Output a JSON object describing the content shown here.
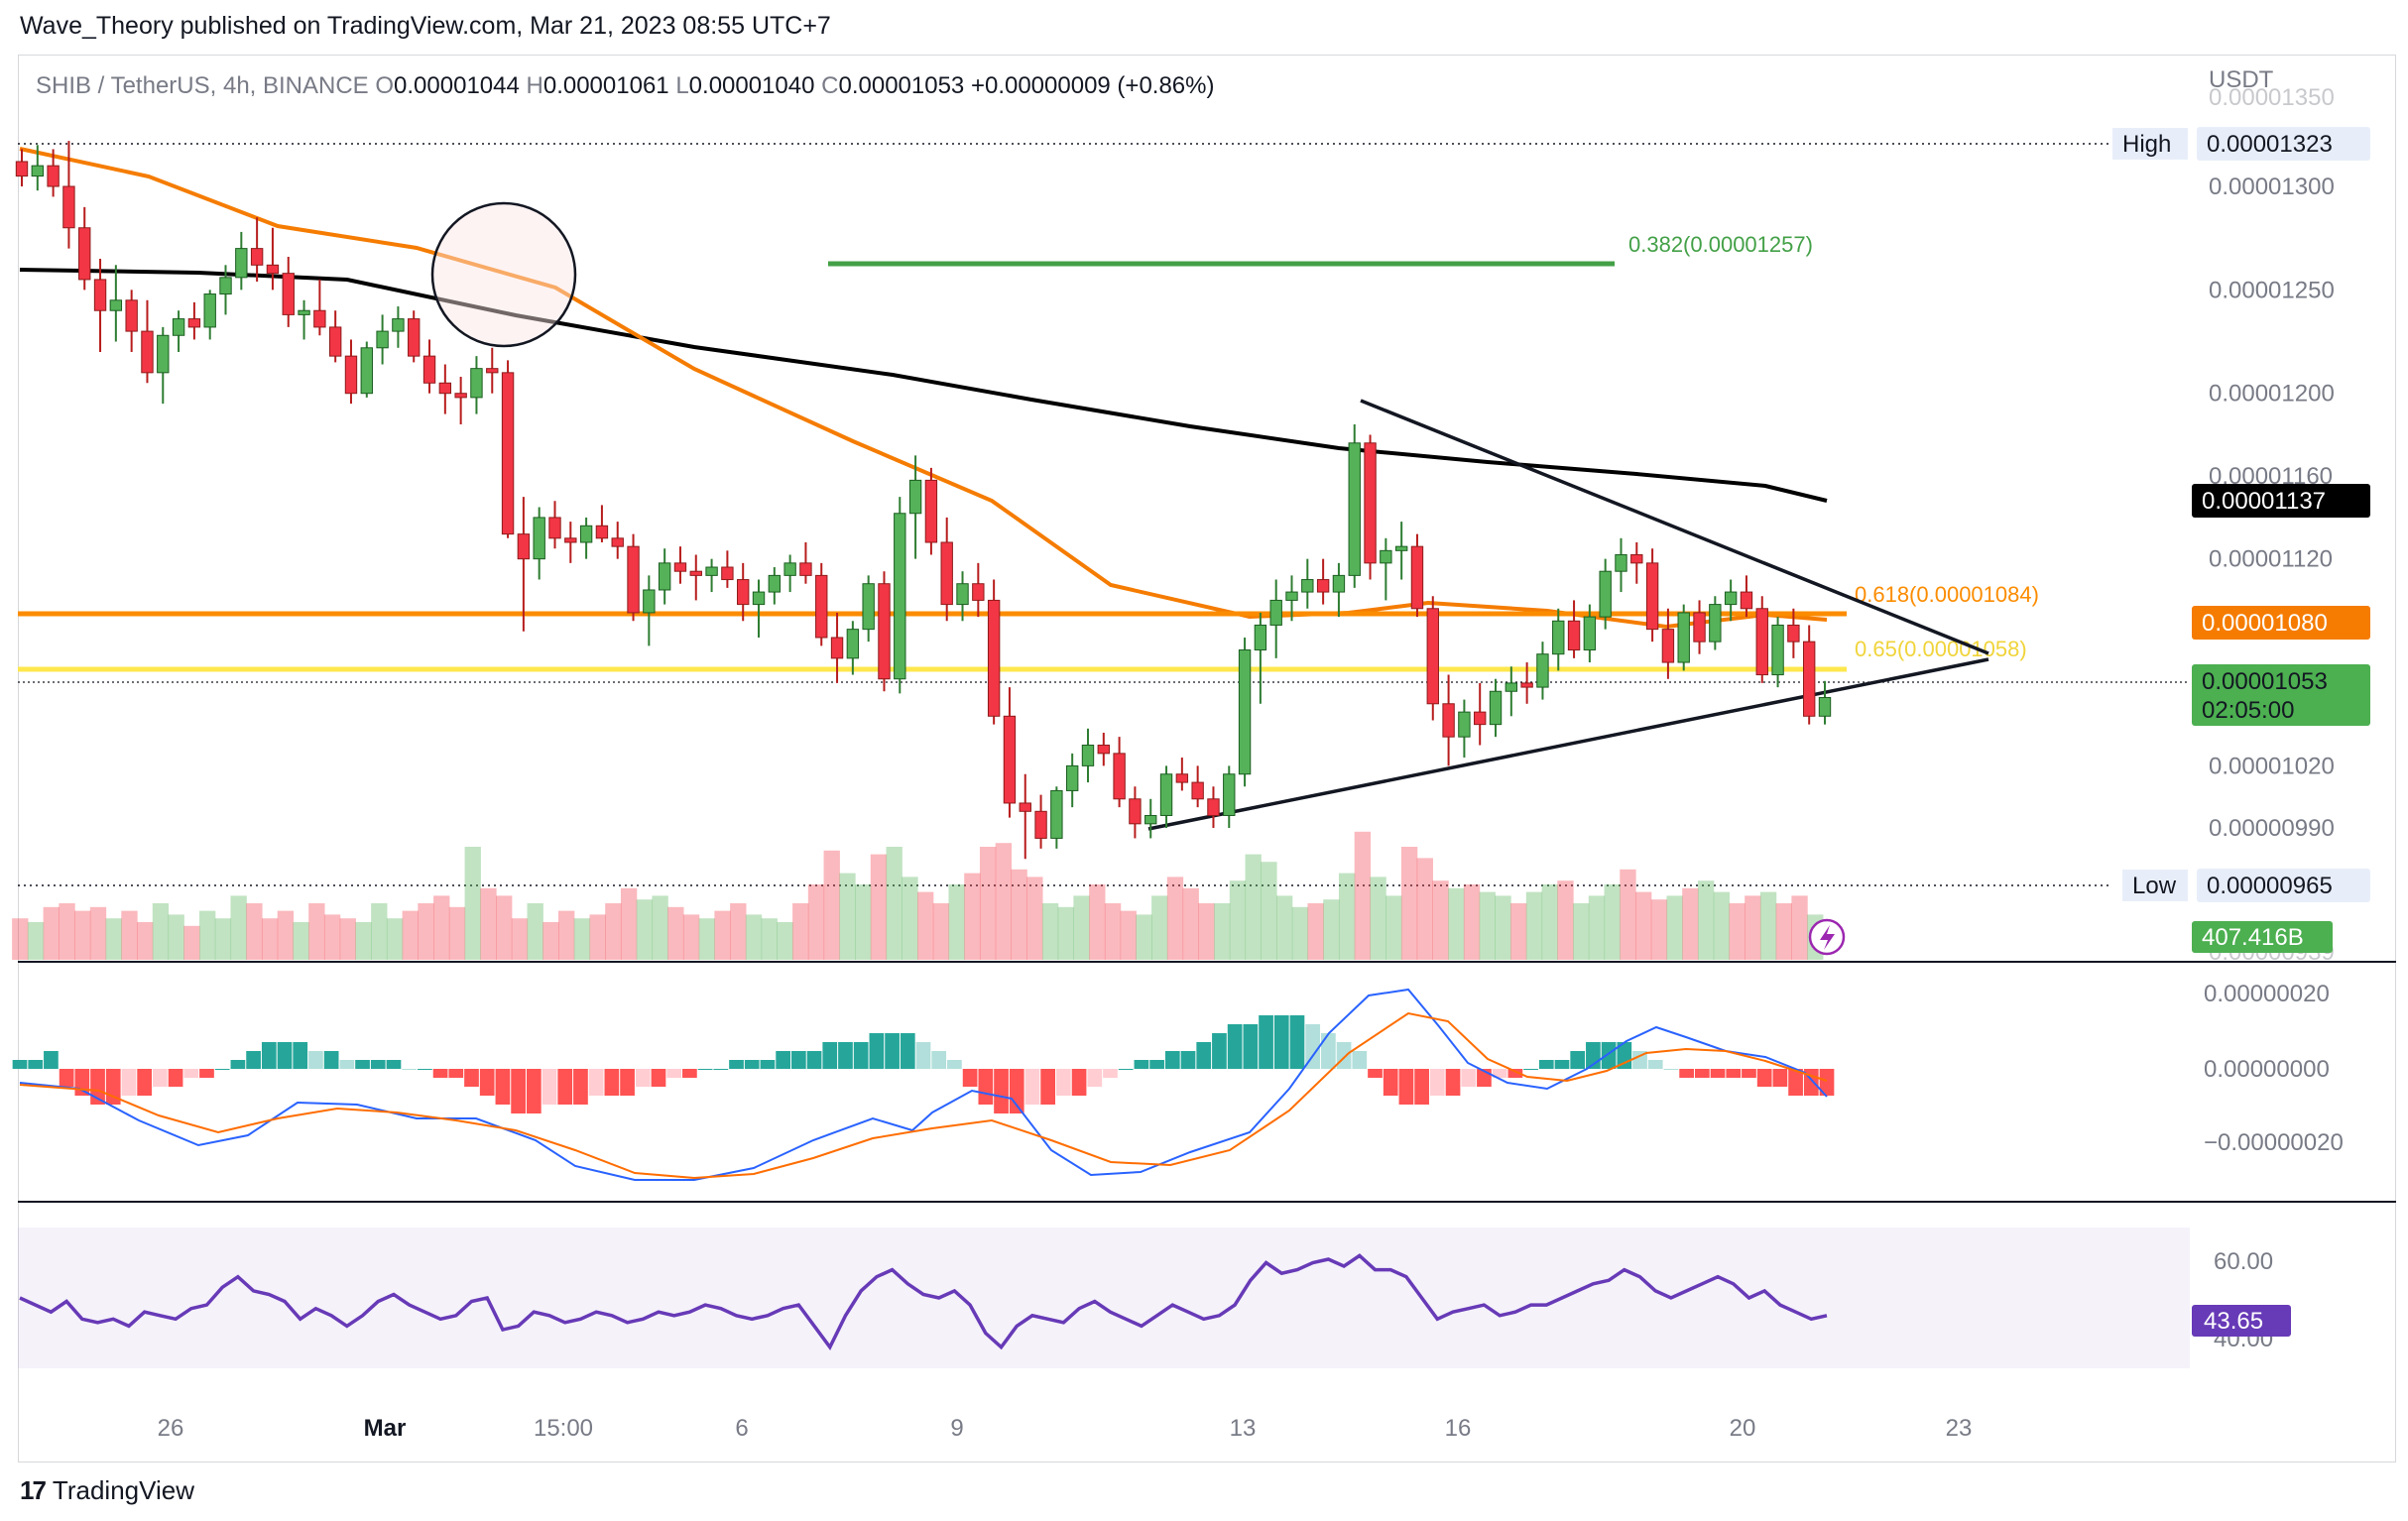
{
  "header": {
    "publisher_line": "Wave_Theory published on TradingView.com, Mar 21, 2023 08:55 UTC+7"
  },
  "legend": {
    "symbol": "SHIB / TetherUS, 4h, BINANCE",
    "o_label": "O",
    "o_value": "0.00001044",
    "h_label": "H",
    "h_value": "0.00001061",
    "l_label": "L",
    "l_value": "0.00001040",
    "c_label": "C",
    "c_value": "0.00001053",
    "change": "+0.00000009 (+0.86%)"
  },
  "footer": {
    "brand": "TradingView"
  },
  "chart_data": {
    "type": "candlestick",
    "currency": "USDT",
    "price_axis": {
      "ticks": [
        "0.00001300",
        "0.00001250",
        "0.00001200",
        "0.00001160",
        "0.00001120",
        "0.00001020",
        "0.00000990"
      ],
      "faded_ticks": [
        "0.00001350",
        "0.00000939"
      ],
      "tick_values": [
        1.3e-05,
        1.25e-05,
        1.2e-05,
        1.16e-05,
        1.12e-05,
        1.02e-05,
        9.9e-06
      ]
    },
    "time_axis": {
      "labels": [
        "26",
        "Mar",
        "15:00",
        "6",
        "9",
        "13",
        "16",
        "20",
        "23"
      ]
    },
    "price_labels": {
      "high": {
        "label": "High",
        "value": "0.00001323",
        "color": "#131722"
      },
      "low": {
        "label": "Low",
        "value": "0.00000965",
        "color": "#131722"
      },
      "ma200": {
        "value": "0.00001137",
        "color": "#000000"
      },
      "ma50": {
        "value": "0.00001080",
        "color": "#f57c00"
      },
      "last": {
        "value": "0.00001053",
        "countdown": "02:05:00",
        "color": "#4caf50"
      },
      "volume": {
        "value": "407.416B",
        "color": "#4caf50"
      },
      "rsi": {
        "value": "43.65",
        "color": "#673ab7"
      }
    },
    "fib_levels": [
      {
        "label": "0.382(0.00001257)",
        "value": 1.257e-05,
        "color": "#43a047"
      },
      {
        "label": "0.618(0.00001084)",
        "value": 1.084e-05,
        "color": "#fb8c00"
      },
      {
        "label": "0.65(0.00001058)",
        "value": 1.058e-05,
        "color": "#ffeb3b"
      }
    ],
    "macd_axis": {
      "ticks": [
        "0.00000020",
        "0.00000000",
        "−0.00000020"
      ]
    },
    "rsi_axis": {
      "ticks": [
        "60.00",
        "40.00"
      ]
    },
    "candles_ohlc_estimated": [
      [
        1.312,
        1.318,
        1.3,
        1.305
      ],
      [
        1.305,
        1.32,
        1.298,
        1.31
      ],
      [
        1.31,
        1.318,
        1.295,
        1.3
      ],
      [
        1.3,
        1.322,
        1.27,
        1.28
      ],
      [
        1.28,
        1.29,
        1.25,
        1.255
      ],
      [
        1.255,
        1.265,
        1.22,
        1.24
      ],
      [
        1.24,
        1.262,
        1.225,
        1.245
      ],
      [
        1.245,
        1.25,
        1.22,
        1.23
      ],
      [
        1.23,
        1.245,
        1.205,
        1.21
      ],
      [
        1.21,
        1.232,
        1.195,
        1.228
      ],
      [
        1.228,
        1.24,
        1.22,
        1.236
      ],
      [
        1.236,
        1.244,
        1.226,
        1.232
      ],
      [
        1.232,
        1.25,
        1.226,
        1.248
      ],
      [
        1.248,
        1.262,
        1.238,
        1.256
      ],
      [
        1.256,
        1.278,
        1.25,
        1.27
      ],
      [
        1.27,
        1.285,
        1.254,
        1.262
      ],
      [
        1.262,
        1.28,
        1.25,
        1.258
      ],
      [
        1.258,
        1.266,
        1.232,
        1.238
      ],
      [
        1.238,
        1.245,
        1.226,
        1.24
      ],
      [
        1.24,
        1.255,
        1.228,
        1.232
      ],
      [
        1.232,
        1.24,
        1.215,
        1.218
      ],
      [
        1.218,
        1.226,
        1.195,
        1.2
      ],
      [
        1.2,
        1.225,
        1.198,
        1.222
      ],
      [
        1.222,
        1.238,
        1.214,
        1.23
      ],
      [
        1.23,
        1.242,
        1.222,
        1.236
      ],
      [
        1.236,
        1.24,
        1.215,
        1.218
      ],
      [
        1.218,
        1.226,
        1.2,
        1.205
      ],
      [
        1.205,
        1.214,
        1.19,
        1.2
      ],
      [
        1.2,
        1.208,
        1.185,
        1.198
      ],
      [
        1.198,
        1.218,
        1.19,
        1.212
      ],
      [
        1.212,
        1.222,
        1.2,
        1.21
      ],
      [
        1.21,
        1.216,
        1.13,
        1.132
      ],
      [
        1.132,
        1.15,
        1.085,
        1.12
      ],
      [
        1.12,
        1.145,
        1.11,
        1.14
      ],
      [
        1.14,
        1.148,
        1.125,
        1.13
      ],
      [
        1.13,
        1.138,
        1.118,
        1.128
      ],
      [
        1.128,
        1.14,
        1.12,
        1.136
      ],
      [
        1.136,
        1.146,
        1.128,
        1.13
      ],
      [
        1.13,
        1.138,
        1.12,
        1.126
      ],
      [
        1.126,
        1.132,
        1.09,
        1.094
      ],
      [
        1.094,
        1.112,
        1.078,
        1.105
      ],
      [
        1.105,
        1.125,
        1.098,
        1.118
      ],
      [
        1.118,
        1.126,
        1.108,
        1.114
      ],
      [
        1.114,
        1.122,
        1.1,
        1.112
      ],
      [
        1.112,
        1.12,
        1.104,
        1.116
      ],
      [
        1.116,
        1.124,
        1.106,
        1.11
      ],
      [
        1.11,
        1.118,
        1.09,
        1.098
      ],
      [
        1.098,
        1.11,
        1.082,
        1.104
      ],
      [
        1.104,
        1.116,
        1.098,
        1.112
      ],
      [
        1.112,
        1.122,
        1.104,
        1.118
      ],
      [
        1.118,
        1.128,
        1.108,
        1.112
      ],
      [
        1.112,
        1.118,
        1.078,
        1.082
      ],
      [
        1.082,
        1.094,
        1.06,
        1.072
      ],
      [
        1.072,
        1.09,
        1.064,
        1.086
      ],
      [
        1.086,
        1.112,
        1.08,
        1.108
      ],
      [
        1.108,
        1.114,
        1.056,
        1.062
      ],
      [
        1.062,
        1.15,
        1.055,
        1.142
      ],
      [
        1.142,
        1.17,
        1.12,
        1.158
      ],
      [
        1.158,
        1.164,
        1.122,
        1.128
      ],
      [
        1.128,
        1.14,
        1.09,
        1.098
      ],
      [
        1.098,
        1.114,
        1.09,
        1.108
      ],
      [
        1.108,
        1.118,
        1.092,
        1.1
      ],
      [
        1.1,
        1.11,
        1.04,
        1.044
      ],
      [
        1.044,
        1.058,
        0.995,
        1.002
      ],
      [
        1.002,
        1.016,
        0.975,
        0.998
      ],
      [
        0.998,
        1.006,
        0.98,
        0.985
      ],
      [
        0.985,
        1.01,
        0.98,
        1.008
      ],
      [
        1.008,
        1.026,
        1.0,
        1.02
      ],
      [
        1.02,
        1.038,
        1.012,
        1.03
      ],
      [
        1.03,
        1.036,
        1.02,
        1.026
      ],
      [
        1.026,
        1.034,
        1.0,
        1.004
      ],
      [
        1.004,
        1.01,
        0.985,
        0.992
      ],
      [
        0.992,
        1.004,
        0.985,
        0.996
      ],
      [
        0.996,
        1.02,
        0.99,
        1.016
      ],
      [
        1.016,
        1.024,
        1.008,
        1.012
      ],
      [
        1.012,
        1.02,
        1.0,
        1.004
      ],
      [
        1.004,
        1.01,
        0.99,
        0.996
      ],
      [
        0.996,
        1.02,
        0.99,
        1.016
      ],
      [
        1.016,
        1.082,
        1.01,
        1.076
      ],
      [
        1.076,
        1.094,
        1.05,
        1.088
      ],
      [
        1.088,
        1.11,
        1.072,
        1.1
      ],
      [
        1.1,
        1.112,
        1.09,
        1.104
      ],
      [
        1.104,
        1.12,
        1.096,
        1.11
      ],
      [
        1.11,
        1.12,
        1.098,
        1.104
      ],
      [
        1.104,
        1.118,
        1.092,
        1.112
      ],
      [
        1.112,
        1.185,
        1.106,
        1.176
      ],
      [
        1.176,
        1.18,
        1.11,
        1.118
      ],
      [
        1.118,
        1.13,
        1.1,
        1.124
      ],
      [
        1.124,
        1.138,
        1.11,
        1.126
      ],
      [
        1.126,
        1.132,
        1.092,
        1.096
      ],
      [
        1.096,
        1.102,
        1.042,
        1.05
      ],
      [
        1.05,
        1.064,
        1.02,
        1.034
      ],
      [
        1.034,
        1.052,
        1.024,
        1.046
      ],
      [
        1.046,
        1.06,
        1.03,
        1.04
      ],
      [
        1.04,
        1.062,
        1.034,
        1.056
      ],
      [
        1.056,
        1.068,
        1.044,
        1.06
      ],
      [
        1.06,
        1.07,
        1.05,
        1.058
      ],
      [
        1.058,
        1.08,
        1.052,
        1.074
      ],
      [
        1.074,
        1.096,
        1.066,
        1.09
      ],
      [
        1.09,
        1.1,
        1.072,
        1.076
      ],
      [
        1.076,
        1.098,
        1.07,
        1.092
      ],
      [
        1.092,
        1.12,
        1.086,
        1.114
      ],
      [
        1.114,
        1.13,
        1.104,
        1.122
      ],
      [
        1.122,
        1.128,
        1.108,
        1.118
      ],
      [
        1.118,
        1.125,
        1.08,
        1.086
      ],
      [
        1.086,
        1.096,
        1.062,
        1.07
      ],
      [
        1.07,
        1.098,
        1.066,
        1.094
      ],
      [
        1.094,
        1.1,
        1.074,
        1.08
      ],
      [
        1.08,
        1.102,
        1.076,
        1.098
      ],
      [
        1.098,
        1.11,
        1.09,
        1.104
      ],
      [
        1.104,
        1.112,
        1.092,
        1.096
      ],
      [
        1.096,
        1.102,
        1.06,
        1.064
      ],
      [
        1.064,
        1.092,
        1.058,
        1.088
      ],
      [
        1.088,
        1.096,
        1.072,
        1.08
      ],
      [
        1.08,
        1.088,
        1.04,
        1.044
      ],
      [
        1.044,
        1.061,
        1.04,
        1.053
      ]
    ],
    "volume_bars_estimated": [
      22,
      20,
      28,
      30,
      26,
      28,
      22,
      26,
      20,
      30,
      24,
      18,
      26,
      22,
      34,
      30,
      22,
      26,
      20,
      30,
      24,
      22,
      20,
      30,
      22,
      26,
      30,
      34,
      28,
      60,
      38,
      34,
      22,
      30,
      20,
      26,
      22,
      24,
      30,
      38,
      32,
      34,
      28,
      24,
      22,
      26,
      30,
      24,
      22,
      20,
      30,
      40,
      58,
      46,
      40,
      56,
      60,
      44,
      36,
      30,
      40,
      46,
      60,
      62,
      48,
      44,
      30,
      28,
      34,
      40,
      30,
      26,
      24,
      34,
      44,
      38,
      30,
      30,
      42,
      56,
      52,
      34,
      28,
      30,
      32,
      46,
      68,
      44,
      34,
      60,
      54,
      42,
      38,
      40,
      36,
      34,
      30,
      36,
      40,
      42,
      30,
      34,
      40,
      48,
      36,
      32,
      34,
      38,
      42,
      36,
      30,
      34,
      36,
      30,
      34,
      24
    ],
    "macd_histogram_estimated": [
      1,
      1,
      2,
      -2,
      -3,
      -4,
      -4,
      -3,
      -3,
      -2,
      -2,
      -1,
      -1,
      0,
      1,
      2,
      3,
      3,
      3,
      2,
      2,
      1,
      1,
      1,
      1,
      0,
      0,
      -1,
      -1,
      -2,
      -3,
      -4,
      -5,
      -5,
      -4,
      -4,
      -4,
      -3,
      -3,
      -3,
      -2,
      -2,
      -1,
      -1,
      0,
      0,
      1,
      1,
      1,
      2,
      2,
      2,
      3,
      3,
      3,
      4,
      4,
      4,
      3,
      2,
      1,
      -2,
      -4,
      -5,
      -5,
      -4,
      -4,
      -3,
      -3,
      -2,
      -1,
      0,
      1,
      1,
      2,
      2,
      3,
      4,
      5,
      5,
      6,
      6,
      6,
      5,
      4,
      3,
      2,
      -1,
      -3,
      -4,
      -4,
      -3,
      -3,
      -2,
      -2,
      -1,
      -1,
      0,
      1,
      1,
      2,
      3,
      3,
      3,
      2,
      1,
      0,
      -1,
      -1,
      -1,
      -1,
      -1,
      -2,
      -2,
      -3,
      -3,
      -3
    ],
    "rsi_estimated": [
      50,
      48,
      46,
      49,
      44,
      43,
      44,
      42,
      46,
      45,
      44,
      47,
      48,
      53,
      56,
      52,
      51,
      49,
      44,
      47,
      45,
      42,
      45,
      49,
      51,
      48,
      46,
      44,
      45,
      49,
      50,
      41,
      42,
      46,
      45,
      43,
      44,
      46,
      45,
      43,
      44,
      46,
      45,
      46,
      48,
      47,
      45,
      44,
      45,
      47,
      48,
      42,
      36,
      45,
      52,
      56,
      58,
      54,
      51,
      50,
      52,
      48,
      40,
      36,
      42,
      45,
      44,
      43,
      47,
      49,
      46,
      44,
      42,
      45,
      48,
      46,
      44,
      45,
      48,
      55,
      60,
      57,
      58,
      60,
      61,
      59,
      62,
      58,
      58,
      56,
      50,
      44,
      46,
      47,
      48,
      45,
      46,
      48,
      48,
      50,
      52,
      54,
      55,
      58,
      56,
      52,
      50,
      52,
      54,
      56,
      54,
      50,
      52,
      48,
      46,
      44,
      45
    ]
  }
}
